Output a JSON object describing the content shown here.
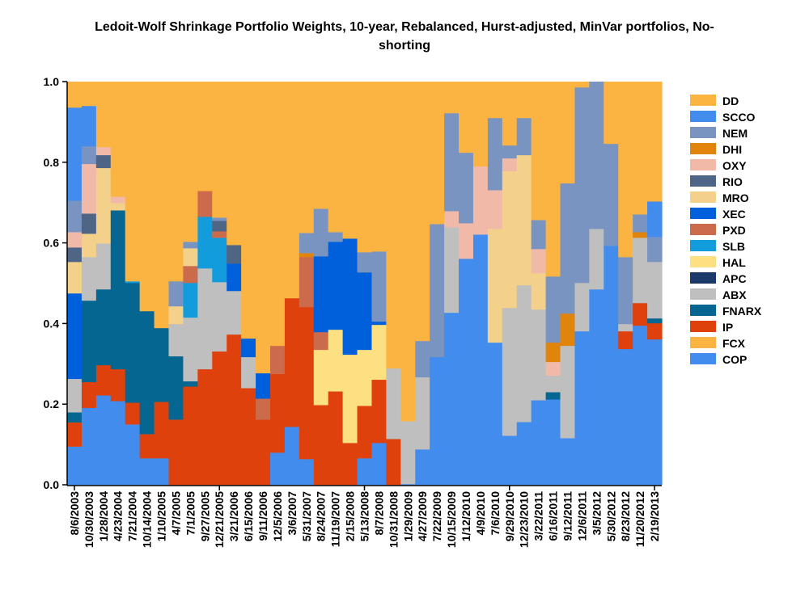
{
  "chart_data": {
    "type": "bar",
    "stacked": true,
    "title_lines": [
      "Ledoit-Wolf Shrinkage Portfolio Weights, 10-year, Rebalanced, Hurst-adjusted, MinVar portfolios, No-",
      "shorting"
    ],
    "xlabel": "",
    "ylabel": "",
    "ylim": [
      0,
      1
    ],
    "yticks": [
      "0.0",
      "0.2",
      "0.4",
      "0.6",
      "0.8",
      "1.0"
    ],
    "legend_position": "right",
    "categories": [
      "8/6/2003",
      "10/30/2003",
      "1/28/2004",
      "4/23/2004",
      "7/21/2004",
      "10/14/2004",
      "1/10/2005",
      "4/7/2005",
      "7/1/2005",
      "9/27/2005",
      "12/21/2005",
      "3/21/2006",
      "6/15/2006",
      "9/11/2006",
      "12/5/2006",
      "3/6/2007",
      "5/31/2007",
      "8/24/2007",
      "11/19/2007",
      "2/15/2008",
      "5/13/2008",
      "8/7/2008",
      "10/31/2008",
      "1/29/2009",
      "4/27/2009",
      "7/22/2009",
      "10/15/2009",
      "1/12/2010",
      "4/9/2010",
      "7/6/2010",
      "9/29/2010",
      "12/23/2010",
      "3/22/2011",
      "6/16/2011",
      "9/12/2011",
      "12/6/2011",
      "3/5/2012",
      "5/30/2012",
      "8/23/2012",
      "11/20/2012",
      "2/19/2013"
    ],
    "series": [
      {
        "name": "COP",
        "color": "#428CEE",
        "values": [
          0.095,
          0.191,
          0.222,
          0.208,
          0.15,
          0.066,
          0.066,
          0,
          0,
          0,
          0,
          0,
          0,
          0,
          0.08,
          0.144,
          0.064,
          0,
          0,
          0,
          0.066,
          0.104,
          0,
          0.002,
          0.088,
          0.317,
          0.427,
          0.561,
          0.621,
          0.353,
          0.122,
          0.156,
          0.21,
          0.212,
          0.116,
          0.381,
          0.485,
          0.593,
          0.337,
          0.395,
          0.361
        ]
      },
      {
        "name": "FCX",
        "color": "#FBB442",
        "values": [
          0,
          0,
          0,
          0,
          0,
          0,
          0,
          0,
          0,
          0,
          0,
          0,
          0,
          0,
          0,
          0,
          0,
          0,
          0,
          0,
          0,
          0,
          0,
          0,
          0,
          0,
          0,
          0,
          0,
          0,
          0,
          0,
          0,
          0,
          0,
          0,
          0,
          0,
          0,
          0,
          0
        ]
      },
      {
        "name": "IP",
        "color": "#DF410C",
        "values": [
          0.06,
          0.064,
          0.075,
          0.079,
          0.054,
          0.06,
          0.14,
          0.162,
          0.244,
          0.287,
          0.331,
          0.373,
          0.24,
          0.162,
          0.195,
          0.319,
          0.377,
          0.198,
          0.232,
          0.104,
          0.13,
          0.157,
          0.114,
          0,
          0,
          0,
          0,
          0,
          0,
          0,
          0,
          0,
          0,
          0,
          0,
          0,
          0,
          0,
          0.044,
          0.056,
          0.04
        ]
      },
      {
        "name": "FNARX",
        "color": "#066692",
        "values": [
          0.025,
          0.202,
          0.188,
          0.394,
          0.297,
          0.305,
          0.183,
          0.157,
          0.013,
          0,
          0,
          0,
          0,
          0,
          0,
          0,
          0,
          0,
          0,
          0,
          0,
          0,
          0,
          0,
          0,
          0,
          0,
          0,
          0,
          0,
          0,
          0,
          0,
          0.018,
          0,
          0,
          0,
          0,
          0,
          0,
          0.012
        ]
      },
      {
        "name": "ABX",
        "color": "#BFBFBF",
        "values": [
          0.083,
          0.108,
          0.114,
          0,
          0,
          0,
          0,
          0.08,
          0.158,
          0.25,
          0.172,
          0.108,
          0.077,
          0,
          0,
          0,
          0,
          0,
          0,
          0,
          0,
          0,
          0.175,
          0.156,
          0.179,
          0,
          0.212,
          0,
          0,
          0,
          0.317,
          0.339,
          0.225,
          0.041,
          0.229,
          0.12,
          0.15,
          0,
          0.018,
          0.162,
          0.14
        ]
      },
      {
        "name": "APC",
        "color": "#1C3A69",
        "values": [
          0,
          0,
          0,
          0,
          0,
          0,
          0,
          0,
          0,
          0,
          0,
          0,
          0,
          0,
          0,
          0,
          0,
          0,
          0,
          0,
          0,
          0,
          0,
          0,
          0,
          0,
          0,
          0,
          0,
          0,
          0,
          0,
          0,
          0,
          0,
          0,
          0,
          0,
          0,
          0,
          0
        ]
      },
      {
        "name": "HAL",
        "color": "#FDE082",
        "values": [
          0,
          0,
          0,
          0,
          0,
          0,
          0,
          0,
          0,
          0,
          0,
          0,
          0,
          0,
          0,
          0,
          0,
          0.137,
          0.153,
          0.219,
          0.139,
          0.136,
          0,
          0,
          0,
          0,
          0,
          0,
          0,
          0,
          0,
          0,
          0,
          0,
          0,
          0,
          0,
          0,
          0,
          0,
          0
        ]
      },
      {
        "name": "SLB",
        "color": "#139CDC",
        "values": [
          0,
          0,
          0,
          0,
          0.004,
          0,
          0,
          0,
          0.086,
          0.128,
          0.11,
          0,
          0,
          0,
          0,
          0,
          0,
          0,
          0,
          0,
          0,
          0,
          0,
          0,
          0,
          0,
          0,
          0,
          0,
          0,
          0,
          0,
          0,
          0,
          0,
          0,
          0,
          0,
          0,
          0,
          0
        ]
      },
      {
        "name": "PXD",
        "color": "#CB6B4C",
        "values": [
          0,
          0,
          0,
          0,
          0,
          0,
          0,
          0,
          0.042,
          0.064,
          0.016,
          0,
          0,
          0.052,
          0.07,
          0,
          0.124,
          0.044,
          0,
          0,
          0,
          0,
          0,
          0,
          0,
          0,
          0,
          0,
          0,
          0,
          0,
          0,
          0,
          0,
          0,
          0,
          0,
          0,
          0,
          0,
          0
        ]
      },
      {
        "name": "XEC",
        "color": "#005FDB",
        "values": [
          0.212,
          0,
          0,
          0,
          0,
          0,
          0,
          0,
          0,
          0,
          0,
          0.068,
          0.046,
          0.063,
          0,
          0,
          0,
          0.188,
          0.218,
          0.288,
          0.192,
          0.008,
          0,
          0,
          0,
          0,
          0,
          0,
          0,
          0,
          0,
          0,
          0,
          0,
          0,
          0,
          0,
          0,
          0,
          0,
          0
        ]
      },
      {
        "name": "MRO",
        "color": "#F3D18A",
        "values": [
          0.078,
          0.058,
          0.187,
          0.018,
          0,
          0,
          0,
          0.044,
          0.044,
          0,
          0,
          0,
          0,
          0,
          0,
          0,
          0,
          0,
          0,
          0,
          0,
          0,
          0,
          0,
          0,
          0,
          0,
          0,
          0,
          0.282,
          0.339,
          0.323,
          0.09,
          0,
          0,
          0,
          0,
          0,
          0,
          0,
          0
        ]
      },
      {
        "name": "RIO",
        "color": "#4F6585",
        "values": [
          0.036,
          0.05,
          0.032,
          0,
          0,
          0,
          0,
          0,
          0,
          0,
          0.026,
          0.046,
          0,
          0,
          0,
          0,
          0,
          0,
          0,
          0,
          0,
          0,
          0,
          0,
          0,
          0,
          0,
          0,
          0,
          0,
          0,
          0,
          0,
          0,
          0,
          0,
          0,
          0,
          0,
          0,
          0
        ]
      },
      {
        "name": "OXY",
        "color": "#F1B9A8",
        "values": [
          0.038,
          0.123,
          0.02,
          0.016,
          0,
          0,
          0,
          0,
          0,
          0,
          0,
          0,
          0,
          0,
          0,
          0,
          0,
          0,
          0,
          0,
          0,
          0,
          0,
          0,
          0,
          0,
          0.04,
          0.088,
          0.169,
          0.096,
          0.032,
          0,
          0.06,
          0.034,
          0,
          0,
          0,
          0,
          0,
          0,
          0
        ]
      },
      {
        "name": "DHI",
        "color": "#E0840C",
        "values": [
          0,
          0,
          0,
          0,
          0,
          0,
          0,
          0,
          0,
          0,
          0,
          0,
          0,
          0,
          0,
          0,
          0.01,
          0,
          0,
          0,
          0,
          0,
          0,
          0,
          0,
          0,
          0,
          0,
          0,
          0,
          0,
          0,
          0,
          0.048,
          0.08,
          0,
          0,
          0,
          0,
          0.014,
          0
        ]
      },
      {
        "name": "NEM",
        "color": "#7994C0",
        "values": [
          0.078,
          0.044,
          0,
          0,
          0,
          0,
          0,
          0.062,
          0.016,
          0,
          0.008,
          0,
          0,
          0,
          0,
          0,
          0.05,
          0.118,
          0.024,
          0,
          0.05,
          0.174,
          0,
          0,
          0.09,
          0.33,
          0.243,
          0.175,
          0,
          0.179,
          0.032,
          0.092,
          0.072,
          0.164,
          0.323,
          0.485,
          0.365,
          0.253,
          0.166,
          0.044,
          0.062
        ]
      },
      {
        "name": "SCCO",
        "color": "#428CEE",
        "values": [
          0.231,
          0.1,
          0,
          0,
          0,
          0,
          0,
          0,
          0,
          0,
          0,
          0,
          0,
          0,
          0,
          0,
          0,
          0,
          0,
          0,
          0,
          0,
          0,
          0,
          0,
          0,
          0,
          0,
          0,
          0,
          0,
          0,
          0,
          0,
          0,
          0,
          0,
          0,
          0,
          0,
          0.088
        ]
      },
      {
        "name": "DD",
        "color": "#FBB442",
        "values": [
          0.064,
          0.06,
          0.162,
          0.285,
          0.495,
          0.569,
          0.611,
          0.495,
          0.397,
          0.271,
          0.337,
          0.405,
          0.637,
          0.723,
          0.655,
          0.537,
          0.375,
          0.315,
          0.373,
          0.389,
          0.423,
          0.421,
          0.711,
          0.842,
          0.643,
          0.353,
          0.078,
          0.176,
          0.21,
          0.09,
          0.158,
          0.09,
          0.343,
          0.483,
          0.252,
          0.014,
          0,
          0.154,
          0.435,
          0.329,
          0.297
        ]
      }
    ]
  }
}
